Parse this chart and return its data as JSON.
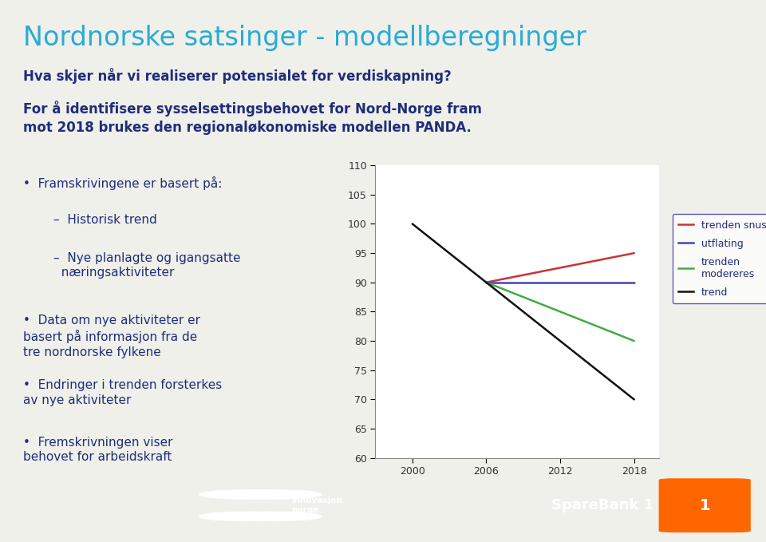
{
  "title": "Nordnorske satsinger - modellberegninger",
  "title_color": "#29ABD4",
  "subtitle1": "Hva skjer når vi realiserer potensialet for verdiskapning?",
  "subtitle2": "For å identifisere sysselsettingsbehovet for Nord-Norge fram\nmot 2018 brukes den regionaløkonomiske modellen PANDA.",
  "text_color": "#1F2D7B",
  "bullet_items": [
    {
      "bullet": "•",
      "indent": 0,
      "text": "Framskrivingene er basert på:"
    },
    {
      "bullet": "–",
      "indent": 1,
      "text": "Historisk trend"
    },
    {
      "bullet": "–",
      "indent": 1,
      "text": "Nye planlagte og igangsatte\n  næringsaktiviteter"
    },
    {
      "bullet": "•",
      "indent": 0,
      "text": "Data om nye aktiviteter er\nbasert på informasjon fra de\ntre nordnorske fylkene"
    },
    {
      "bullet": "•",
      "indent": 0,
      "text": "Endringer i trenden forsterkes\nav nye aktiviteter"
    },
    {
      "bullet": "•",
      "indent": 0,
      "text": "Fremskrivningen viser\nbehovet for arbeidskraft"
    }
  ],
  "chart": {
    "x_ticks": [
      2000,
      2006,
      2012,
      2018
    ],
    "xlim": [
      1997,
      2020
    ],
    "ylim": [
      60,
      110
    ],
    "y_ticks": [
      60,
      65,
      70,
      75,
      80,
      85,
      90,
      95,
      100,
      105,
      110
    ],
    "series": [
      {
        "label": "trenden snus",
        "color": "#CC3333",
        "x": [
          2006,
          2018
        ],
        "y": [
          90,
          95
        ]
      },
      {
        "label": "utflating",
        "color": "#4444BB",
        "x": [
          2006,
          2018
        ],
        "y": [
          90,
          90
        ]
      },
      {
        "label": "trenden\nmodereres",
        "color": "#44AA44",
        "x": [
          2006,
          2018
        ],
        "y": [
          90,
          80
        ]
      },
      {
        "label": "trend",
        "color": "#111111",
        "x": [
          2000,
          2018
        ],
        "y": [
          100,
          70
        ]
      }
    ]
  },
  "bg_color": "#F0F0EB",
  "footer_color": "#1F2D7B",
  "title_fontsize": 24,
  "subtitle_fontsize": 12,
  "bullet_fontsize": 11
}
